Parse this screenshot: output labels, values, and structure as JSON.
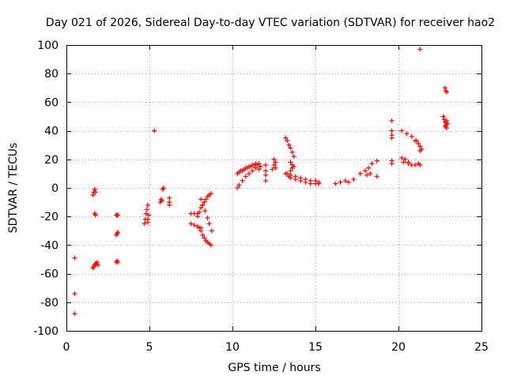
{
  "chart_data": {
    "type": "scatter",
    "title": "Day 021 of 2026, Sidereal Day-to-day VTEC variation (SDTVAR) for receiver hao2",
    "xlabel": "GPS time / hours",
    "ylabel": "SDTVAR / TECUs",
    "xlim": [
      0,
      25
    ],
    "ylim": [
      -100,
      100
    ],
    "xticks": [
      0,
      5,
      10,
      15,
      20,
      25
    ],
    "yticks": [
      -100,
      -80,
      -60,
      -40,
      -20,
      0,
      20,
      40,
      60,
      80,
      100
    ],
    "grid": true,
    "marker": "plus",
    "color": "#ff0000",
    "series": [
      {
        "name": "SDTVAR",
        "x": [
          0.5,
          0.5,
          0.5,
          1.6,
          1.65,
          1.7,
          1.75,
          1.7,
          1.72,
          1.75,
          1.6,
          1.65,
          1.7,
          1.75,
          1.8,
          1.85,
          1.9,
          3.0,
          3.05,
          3.1,
          3.0,
          3.05,
          3.1,
          3.0,
          3.05,
          3.1,
          4.7,
          4.75,
          4.8,
          4.85,
          4.9,
          4.95,
          4.9,
          4.9,
          5.3,
          5.65,
          5.7,
          5.75,
          5.8,
          5.85,
          6.2,
          6.2,
          6.2,
          7.5,
          7.7,
          7.9,
          7.5,
          7.7,
          7.9,
          8.1,
          7.9,
          8.0,
          8.1,
          8.2,
          8.3,
          8.4,
          8.5,
          8.6,
          8.7,
          8.0,
          8.1,
          8.2,
          8.3,
          8.4,
          8.5,
          8.6,
          8.7,
          8.1,
          8.2,
          8.35,
          8.5,
          8.6,
          8.75,
          10.3,
          10.4,
          10.6,
          10.8,
          11.0,
          11.2,
          11.4,
          10.3,
          10.5,
          10.7,
          10.9,
          11.1,
          11.3,
          11.5,
          10.4,
          10.6,
          10.8,
          11.0,
          11.2,
          11.4,
          11.6,
          11.7,
          11.6,
          12.0,
          12.0,
          12.0,
          12.0,
          12.4,
          12.5,
          12.6,
          12.5,
          12.6,
          13.2,
          13.3,
          13.4,
          13.5,
          13.6,
          13.7,
          13.3,
          13.4,
          13.5,
          13.6,
          13.5,
          13.6,
          13.7,
          13.2,
          13.5,
          13.8,
          14.1,
          14.4,
          14.7,
          15.0,
          15.2,
          13.5,
          13.8,
          14.1,
          14.4,
          14.7,
          15.0,
          15.2,
          16.2,
          16.5,
          16.8,
          17.0,
          17.3,
          17.7,
          18.0,
          18.2,
          18.4,
          18.7,
          18.1,
          18.3,
          18.7,
          19.6,
          19.6,
          19.6,
          19.6,
          19.6,
          19.6,
          20.2,
          20.5,
          20.8,
          21.0,
          20.2,
          20.4,
          20.6,
          20.8,
          20.3,
          20.6,
          21.0,
          21.2,
          21.3,
          21.1,
          21.2,
          21.3,
          21.4,
          21.3,
          21.3,
          22.8,
          22.85,
          22.9,
          22.7,
          22.75,
          22.8,
          22.85,
          22.9,
          22.95,
          22.8,
          22.9
        ],
        "y": [
          -49,
          -74,
          -88,
          -5,
          -3,
          -1,
          -3,
          -18,
          -18,
          -19,
          -56,
          -55,
          -54,
          -53,
          -53,
          -52,
          -54,
          -19,
          -19,
          -19,
          -33,
          -32,
          -31,
          -52,
          -51,
          -52,
          -25,
          -22,
          -18,
          -15,
          -12,
          -19,
          -22,
          -24,
          40,
          -10,
          -8,
          -9,
          -1,
          0,
          -7,
          -10,
          -12,
          -18,
          -18,
          -18,
          -25,
          -26,
          -27,
          -28,
          -20,
          -17,
          -14,
          -12,
          -10,
          -8,
          -6,
          -5,
          -4,
          -28,
          -30,
          -33,
          -35,
          -37,
          -38,
          -39,
          -40,
          -8,
          -12,
          -16,
          -21,
          -25,
          -30,
          0,
          2,
          5,
          8,
          10,
          12,
          14,
          10,
          12,
          13,
          14,
          15,
          16,
          16,
          11,
          12,
          14,
          15,
          16,
          17,
          17,
          15,
          13,
          5,
          9,
          12,
          16,
          13,
          16,
          18,
          20,
          14,
          35,
          33,
          30,
          28,
          25,
          22,
          10,
          8,
          12,
          14,
          18,
          16,
          15,
          10,
          9,
          8,
          7,
          6,
          5,
          5,
          4,
          7,
          6,
          5,
          4,
          3,
          3,
          3,
          3,
          4,
          5,
          4,
          6,
          10,
          12,
          14,
          17,
          19,
          9,
          10,
          8,
          47,
          40,
          37,
          35,
          19,
          17,
          40,
          38,
          36,
          33,
          21,
          20,
          18,
          16,
          18,
          17,
          16,
          17,
          16,
          33,
          31,
          29,
          27,
          26,
          97,
          70,
          68,
          67,
          50,
          48,
          46,
          44,
          42,
          45,
          43,
          47
        ]
      }
    ]
  }
}
